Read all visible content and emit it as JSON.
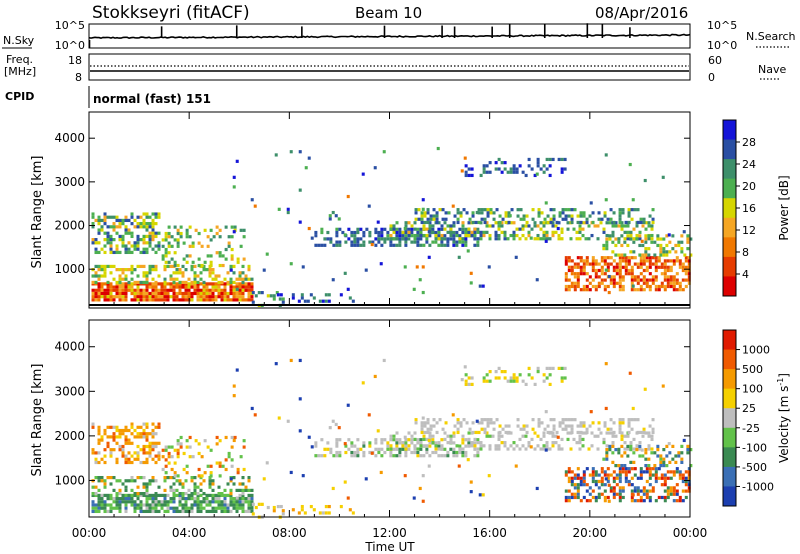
{
  "header": {
    "station": "Stokkseyri (fitACF)",
    "beam": "Beam 10",
    "date": "08/Apr/2016"
  },
  "noise_panel": {
    "left_label": "N.Sky",
    "right_label": "N.Search",
    "ticks_left": [
      "10^5",
      "10^0"
    ],
    "ticks_right": [
      "10^5",
      "10^0"
    ]
  },
  "freq_panel": {
    "left_label_1": "Freq.",
    "left_label_2": "[MHz]",
    "right_label": "Nave",
    "ticks_left": [
      "18",
      "8"
    ],
    "ticks_right": [
      "60",
      "0"
    ]
  },
  "cpid": {
    "label": "CPID",
    "mode": "normal (fast) 151"
  },
  "colors": {
    "power_scale": [
      "#1414d8",
      "#2a4fa3",
      "#3d8f6a",
      "#4caf50",
      "#d6d600",
      "#f5a623",
      "#f07800",
      "#e63c00",
      "#dd0000"
    ],
    "velocity_scale": [
      "#1c3fb0",
      "#3a6fb5",
      "#3a8a52",
      "#62c24a",
      "#bebebe",
      "#f5d000",
      "#f59a00",
      "#f05a00",
      "#e01a00"
    ]
  },
  "chart_data": [
    {
      "type": "heatmap",
      "name": "power",
      "xlabel": "",
      "ylabel": "Slant Range [km]",
      "xlim_hours": [
        0,
        24
      ],
      "ylim": [
        180,
        4600
      ],
      "yticks": [
        "1000",
        "2000",
        "3000",
        "4000"
      ],
      "xticks": [
        "00:00",
        "04:00",
        "08:00",
        "12:00",
        "16:00",
        "20:00",
        "00:00"
      ],
      "colorbar": {
        "label": "Power [dB]",
        "range": [
          0,
          32
        ],
        "ticks": [
          "4",
          "8",
          "12",
          "16",
          "20",
          "24",
          "28"
        ]
      }
    },
    {
      "type": "heatmap",
      "name": "velocity",
      "xlabel": "Time UT",
      "ylabel": "Slant Range [km]",
      "xlim_hours": [
        0,
        24
      ],
      "ylim": [
        180,
        4600
      ],
      "yticks": [
        "1000",
        "2000",
        "3000",
        "4000"
      ],
      "xticks": [
        "00:00",
        "04:00",
        "08:00",
        "12:00",
        "16:00",
        "20:00",
        "00:00"
      ],
      "colorbar": {
        "label": "Velocity [m s",
        "label_sup": "-1",
        "label_end": "]",
        "ticks": [
          "1000",
          "500",
          "100",
          "25",
          "-25",
          "-100",
          "-500",
          "-1000"
        ]
      }
    }
  ]
}
